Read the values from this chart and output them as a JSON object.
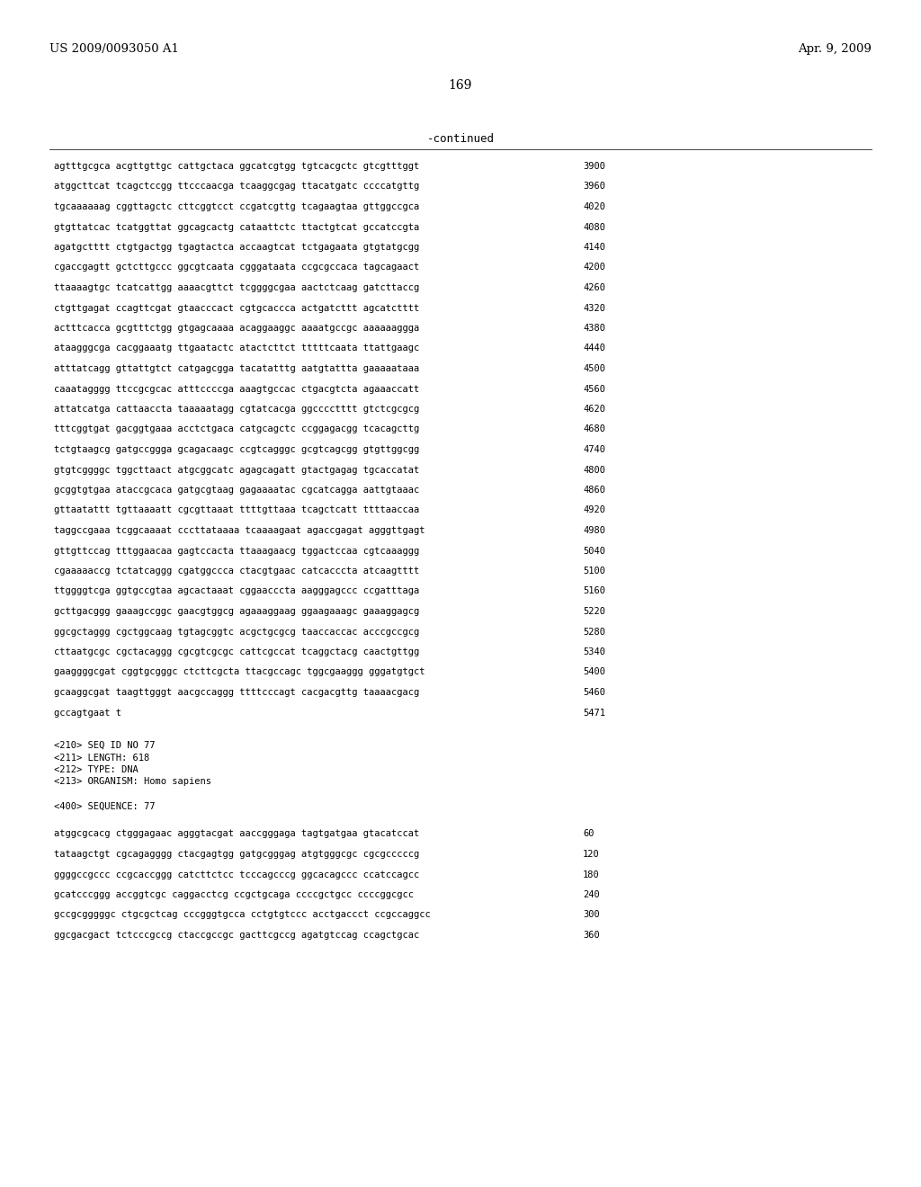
{
  "header_left": "US 2009/0093050 A1",
  "header_right": "Apr. 9, 2009",
  "page_number": "169",
  "continued_label": "-continued",
  "background_color": "#ffffff",
  "text_color": "#000000",
  "sequence_lines": [
    {
      "seq": "agtttgcgca acgttgttgc cattgctaca ggcatcgtgg tgtcacgctc gtcgtttggt",
      "num": "3900"
    },
    {
      "seq": "atggcttcat tcagctccgg ttcccaacga tcaaggcgag ttacatgatc ccccatgttg",
      "num": "3960"
    },
    {
      "seq": "tgcaaaaaag cggttagctc cttcggtcct ccgatcgttg tcagaagtaa gttggccgca",
      "num": "4020"
    },
    {
      "seq": "gtgttatcac tcatggttat ggcagcactg cataattctc ttactgtcat gccatccgta",
      "num": "4080"
    },
    {
      "seq": "agatgctttt ctgtgactgg tgagtactca accaagtcat tctgagaata gtgtatgcgg",
      "num": "4140"
    },
    {
      "seq": "cgaccgagtt gctcttgccc ggcgtcaata cgggataata ccgcgccaca tagcagaact",
      "num": "4200"
    },
    {
      "seq": "ttaaaagtgc tcatcattgg aaaacgttct tcggggcgaa aactctcaag gatcttaccg",
      "num": "4260"
    },
    {
      "seq": "ctgttgagat ccagttcgat gtaacccact cgtgcaccca actgatcttt agcatctttt",
      "num": "4320"
    },
    {
      "seq": "actttcacca gcgtttctgg gtgagcaaaa acaggaaggc aaaatgccgc aaaaaaggga",
      "num": "4380"
    },
    {
      "seq": "ataagggcga cacggaaatg ttgaatactc atactcttct tttttcaata ttattgaagc",
      "num": "4440"
    },
    {
      "seq": "atttatcagg gttattgtct catgagcgga tacatatttg aatgtattta gaaaaataaa",
      "num": "4500"
    },
    {
      "seq": "caaatagggg ttccgcgcac atttccccga aaagtgccac ctgacgtcta agaaaccatt",
      "num": "4560"
    },
    {
      "seq": "attatcatga cattaaccta taaaaatagg cgtatcacga ggcccctttt gtctcgcgcg",
      "num": "4620"
    },
    {
      "seq": "tttcggtgat gacggtgaaa acctctgaca catgcagctc ccggagacgg tcacagcttg",
      "num": "4680"
    },
    {
      "seq": "tctgtaagcg gatgccggga gcagacaagc ccgtcagggc gcgtcagcgg gtgttggcgg",
      "num": "4740"
    },
    {
      "seq": "gtgtcggggc tggcttaact atgcggcatc agagcagatt gtactgagag tgcaccatat",
      "num": "4800"
    },
    {
      "seq": "gcggtgtgaa ataccgcaca gatgcgtaag gagaaaatac cgcatcagga aattgtaaac",
      "num": "4860"
    },
    {
      "seq": "gttaatattt tgttaaaatt cgcgttaaat ttttgttaaa tcagctcatt ttttaaccaa",
      "num": "4920"
    },
    {
      "seq": "taggccgaaa tcggcaaaat cccttataaaa tcaaaagaat agaccgagat agggttgagt",
      "num": "4980"
    },
    {
      "seq": "gttgttccag tttggaacaa gagtccacta ttaaagaacg tggactccaa cgtcaaaggg",
      "num": "5040"
    },
    {
      "seq": "cgaaaaaccg tctatcaggg cgatggccca ctacgtgaac catcacccta atcaagtttt",
      "num": "5100"
    },
    {
      "seq": "ttggggtcga ggtgccgtaa agcactaaat cggaacccta aagggagccc ccgatttaga",
      "num": "5160"
    },
    {
      "seq": "gcttgacggg gaaagccggc gaacgtggcg agaaaggaag ggaagaaagc gaaaggagcg",
      "num": "5220"
    },
    {
      "seq": "ggcgctaggg cgctggcaag tgtagcggtc acgctgcgcg taaccaccac acccgccgcg",
      "num": "5280"
    },
    {
      "seq": "cttaatgcgc cgctacaggg cgcgtcgcgc cattcgccat tcaggctacg caactgttgg",
      "num": "5340"
    },
    {
      "seq": "gaaggggcgat cggtgcgggc ctcttcgcta ttacgccagc tggcgaaggg gggatgtgct",
      "num": "5400"
    },
    {
      "seq": "gcaaggcgat taagttgggt aacgccaggg ttttcccagt cacgacgttg taaaacgacg",
      "num": "5460"
    },
    {
      "seq": "gccagtgaat t",
      "num": "5471"
    }
  ],
  "metadata_lines": [
    "<210> SEQ ID NO 77",
    "<211> LENGTH: 618",
    "<212> TYPE: DNA",
    "<213> ORGANISM: Homo sapiens",
    "",
    "<400> SEQUENCE: 77",
    ""
  ],
  "sequence_lines2": [
    {
      "seq": "atggcgcacg ctgggagaac agggtacgat aaccgggaga tagtgatgaa gtacatccat",
      "num": "60"
    },
    {
      "seq": "tataagctgt cgcagagggg ctacgagtgg gatgcgggag atgtgggcgc cgcgcccccg",
      "num": "120"
    },
    {
      "seq": "ggggccgccc ccgcaccggg catcttctcc tcccagcccg ggcacagccc ccatccagcc",
      "num": "180"
    },
    {
      "seq": "gcatcccggg accggtcgc caggacctcg ccgctgcaga ccccgctgcc ccccggcgcc",
      "num": "240"
    },
    {
      "seq": "gccgcgggggc ctgcgctcag cccgggtgcca cctgtgtccc acctgaccct ccgccaggcc",
      "num": "300"
    },
    {
      "seq": "ggcgacgact tctcccgccg ctaccgccgc gacttcgccg agatgtccag ccagctgcac",
      "num": "360"
    }
  ]
}
